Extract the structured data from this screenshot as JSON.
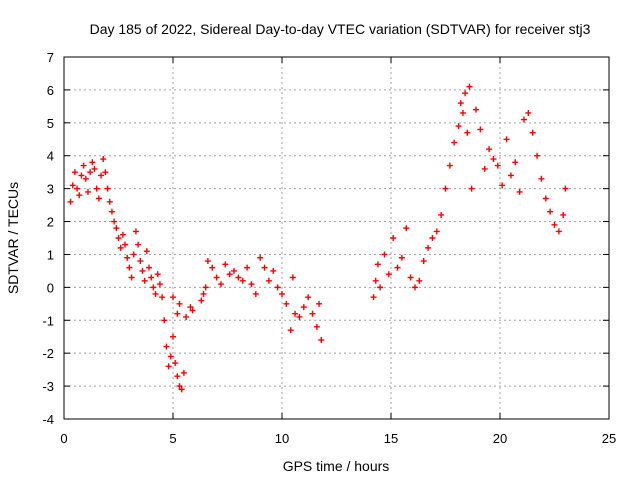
{
  "chart_data": {
    "type": "scatter",
    "title": "Day 185 of 2022, Sidereal Day-to-day VTEC variation (SDTVAR) for receiver stj3",
    "xlabel": "GPS time / hours",
    "ylabel": "SDTVAR / TECUs",
    "xlim": [
      0,
      25
    ],
    "ylim": [
      -4,
      7
    ],
    "xticks": [
      0,
      5,
      10,
      15,
      20,
      25
    ],
    "yticks": [
      -4,
      -3,
      -2,
      -1,
      0,
      1,
      2,
      3,
      4,
      5,
      6,
      7
    ],
    "grid": true,
    "marker": "+",
    "color": "#ff0000",
    "series": [
      {
        "name": "SDTVAR",
        "points": [
          [
            0.3,
            2.6
          ],
          [
            0.4,
            3.1
          ],
          [
            0.5,
            3.5
          ],
          [
            0.6,
            3.0
          ],
          [
            0.7,
            2.8
          ],
          [
            0.8,
            3.4
          ],
          [
            0.9,
            3.7
          ],
          [
            1.0,
            3.3
          ],
          [
            1.1,
            2.9
          ],
          [
            1.2,
            3.5
          ],
          [
            1.3,
            3.8
          ],
          [
            1.4,
            3.6
          ],
          [
            1.5,
            3.0
          ],
          [
            1.6,
            2.7
          ],
          [
            1.7,
            3.4
          ],
          [
            1.8,
            3.9
          ],
          [
            1.9,
            3.5
          ],
          [
            2.0,
            3.0
          ],
          [
            2.1,
            2.6
          ],
          [
            2.2,
            2.3
          ],
          [
            2.3,
            2.0
          ],
          [
            2.4,
            1.8
          ],
          [
            2.5,
            1.5
          ],
          [
            2.6,
            1.2
          ],
          [
            2.7,
            1.6
          ],
          [
            2.8,
            1.3
          ],
          [
            2.9,
            0.9
          ],
          [
            3.0,
            0.6
          ],
          [
            3.1,
            0.3
          ],
          [
            3.2,
            1.0
          ],
          [
            3.3,
            1.7
          ],
          [
            3.4,
            1.3
          ],
          [
            3.5,
            0.8
          ],
          [
            3.6,
            0.5
          ],
          [
            3.7,
            0.2
          ],
          [
            3.8,
            1.1
          ],
          [
            3.9,
            0.6
          ],
          [
            4.0,
            0.3
          ],
          [
            4.1,
            0.0
          ],
          [
            4.2,
            -0.2
          ],
          [
            4.3,
            0.4
          ],
          [
            4.4,
            0.1
          ],
          [
            4.5,
            -0.3
          ],
          [
            4.6,
            -1.0
          ],
          [
            4.7,
            -1.8
          ],
          [
            4.8,
            -2.4
          ],
          [
            4.9,
            -2.1
          ],
          [
            5.0,
            -1.5
          ],
          [
            5.1,
            -2.3
          ],
          [
            5.2,
            -2.7
          ],
          [
            5.3,
            -3.0
          ],
          [
            5.4,
            -3.1
          ],
          [
            5.5,
            -2.6
          ],
          [
            5.2,
            -0.8
          ],
          [
            5.0,
            -0.3
          ],
          [
            5.3,
            -0.5
          ],
          [
            5.6,
            -0.9
          ],
          [
            5.8,
            -0.6
          ],
          [
            5.9,
            -0.7
          ],
          [
            6.3,
            -0.4
          ],
          [
            6.4,
            -0.2
          ],
          [
            6.5,
            0.0
          ],
          [
            6.6,
            0.8
          ],
          [
            6.8,
            0.6
          ],
          [
            7.0,
            0.3
          ],
          [
            7.2,
            0.1
          ],
          [
            7.4,
            0.7
          ],
          [
            7.6,
            0.4
          ],
          [
            7.8,
            0.5
          ],
          [
            8.0,
            0.3
          ],
          [
            8.2,
            0.2
          ],
          [
            8.4,
            0.6
          ],
          [
            8.6,
            0.1
          ],
          [
            8.8,
            -0.2
          ],
          [
            9.0,
            0.9
          ],
          [
            9.2,
            0.6
          ],
          [
            9.4,
            0.2
          ],
          [
            9.6,
            0.5
          ],
          [
            9.8,
            0.0
          ],
          [
            10.0,
            -0.2
          ],
          [
            10.2,
            -0.5
          ],
          [
            10.4,
            -1.3
          ],
          [
            10.5,
            0.3
          ],
          [
            10.6,
            -0.8
          ],
          [
            10.8,
            -0.9
          ],
          [
            11.0,
            -0.6
          ],
          [
            11.2,
            -0.3
          ],
          [
            11.4,
            -0.8
          ],
          [
            11.6,
            -1.2
          ],
          [
            11.7,
            -0.5
          ],
          [
            11.8,
            -1.6
          ],
          [
            14.2,
            -0.3
          ],
          [
            14.3,
            0.2
          ],
          [
            14.4,
            0.7
          ],
          [
            14.5,
            0.0
          ],
          [
            14.7,
            1.0
          ],
          [
            14.9,
            0.4
          ],
          [
            15.1,
            1.5
          ],
          [
            15.3,
            0.6
          ],
          [
            15.5,
            0.9
          ],
          [
            15.7,
            1.8
          ],
          [
            15.9,
            0.3
          ],
          [
            16.1,
            0.0
          ],
          [
            16.3,
            0.2
          ],
          [
            16.5,
            0.8
          ],
          [
            16.7,
            1.2
          ],
          [
            16.9,
            1.5
          ],
          [
            17.1,
            1.7
          ],
          [
            17.3,
            2.2
          ],
          [
            17.5,
            3.0
          ],
          [
            17.7,
            3.7
          ],
          [
            17.9,
            4.4
          ],
          [
            18.1,
            4.9
          ],
          [
            18.2,
            5.6
          ],
          [
            18.3,
            5.3
          ],
          [
            18.4,
            5.9
          ],
          [
            18.5,
            4.7
          ],
          [
            18.6,
            6.1
          ],
          [
            18.7,
            3.0
          ],
          [
            18.9,
            5.4
          ],
          [
            19.1,
            4.8
          ],
          [
            19.3,
            3.6
          ],
          [
            19.5,
            4.2
          ],
          [
            19.7,
            3.9
          ],
          [
            19.9,
            3.7
          ],
          [
            20.1,
            3.1
          ],
          [
            20.3,
            4.5
          ],
          [
            20.5,
            3.4
          ],
          [
            20.7,
            3.8
          ],
          [
            20.9,
            2.9
          ],
          [
            21.1,
            5.1
          ],
          [
            21.3,
            5.3
          ],
          [
            21.5,
            4.7
          ],
          [
            21.7,
            4.0
          ],
          [
            21.9,
            3.3
          ],
          [
            22.1,
            2.7
          ],
          [
            22.3,
            2.3
          ],
          [
            22.5,
            1.9
          ],
          [
            22.7,
            1.7
          ],
          [
            22.9,
            2.2
          ],
          [
            23.0,
            3.0
          ]
        ]
      }
    ]
  }
}
